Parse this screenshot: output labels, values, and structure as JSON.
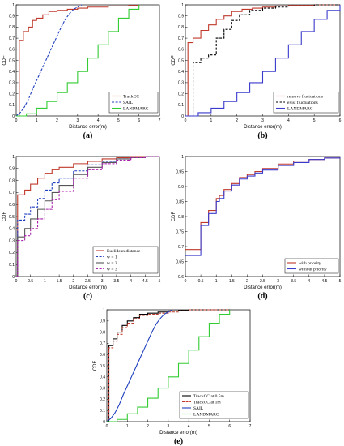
{
  "chart_data": [
    {
      "type": "line",
      "panel_label": "(a)",
      "xlabel": "Distance error(m)",
      "ylabel": "CDF",
      "xlim": [
        0,
        7
      ],
      "ylim": [
        0,
        1
      ],
      "xticks": [
        0,
        1,
        2,
        3,
        4,
        5,
        6,
        7
      ],
      "xtick_labels": [
        "0",
        "1",
        "2",
        "3",
        "4",
        "5",
        "6",
        "7"
      ],
      "yticks": [
        0,
        0.1,
        0.2,
        0.3,
        0.4,
        0.5,
        0.6,
        0.7,
        0.8,
        0.9,
        1
      ],
      "ytick_labels": [
        "0",
        "0.1",
        "0.2",
        "0.3",
        "0.4",
        "0.5",
        "0.6",
        "0.7",
        "0.8",
        "0.9",
        "1"
      ],
      "legend_position": "bottom-right",
      "series": [
        {
          "name": "TrackCC",
          "color": "#c0392b",
          "style": "solid",
          "step": true,
          "x": [
            0,
            0.15,
            0.35,
            0.6,
            0.8,
            1.0,
            1.3,
            1.6,
            2.0,
            2.5,
            3.0,
            3.5,
            4.5,
            5.5,
            6.0
          ],
          "y": [
            0,
            0.68,
            0.76,
            0.8,
            0.86,
            0.88,
            0.91,
            0.94,
            0.95,
            0.96,
            0.97,
            0.98,
            0.99,
            0.995,
            1.0
          ]
        },
        {
          "name": "SAIL",
          "color": "#1f3fbf",
          "style": "dashed",
          "step": false,
          "x": [
            0,
            0.2,
            0.4,
            0.6,
            0.8,
            1.0,
            1.2,
            1.4,
            1.6,
            1.8,
            2.0,
            2.2,
            2.4,
            2.6,
            2.8,
            3.0,
            3.2
          ],
          "y": [
            0,
            0.03,
            0.08,
            0.15,
            0.24,
            0.32,
            0.4,
            0.48,
            0.56,
            0.64,
            0.72,
            0.8,
            0.87,
            0.92,
            0.96,
            0.98,
            1.0
          ]
        },
        {
          "name": "LANDMARC",
          "color": "#33cc33",
          "style": "solid",
          "step": true,
          "x": [
            0,
            0.5,
            1.0,
            1.5,
            2.0,
            2.5,
            3.0,
            3.5,
            4.0,
            4.5,
            5.0,
            5.5,
            6.0
          ],
          "y": [
            0,
            0.02,
            0.07,
            0.13,
            0.21,
            0.3,
            0.4,
            0.52,
            0.64,
            0.76,
            0.88,
            0.96,
            1.0
          ]
        }
      ]
    },
    {
      "type": "line",
      "panel_label": "(b)",
      "xlabel": "Distance error(m)",
      "ylabel": "CDF",
      "xlim": [
        0,
        6
      ],
      "ylim": [
        0,
        1
      ],
      "xticks": [
        0,
        1,
        2,
        3,
        4,
        5,
        6
      ],
      "xtick_labels": [
        "0",
        "1",
        "2",
        "3",
        "4",
        "5",
        "6"
      ],
      "yticks": [
        0,
        0.1,
        0.2,
        0.3,
        0.4,
        0.5,
        0.6,
        0.7,
        0.8,
        0.9,
        1
      ],
      "ytick_labels": [
        "0",
        "0.1",
        "0.2",
        "0.3",
        "0.4",
        "0.5",
        "0.6",
        "0.7",
        "0.8",
        "0.9",
        "1"
      ],
      "legend_position": "bottom-right",
      "series": [
        {
          "name": "remove fluctuations",
          "color": "#c0392b",
          "style": "solid",
          "step": true,
          "x": [
            0,
            0.1,
            0.3,
            0.6,
            0.9,
            1.2,
            1.5,
            1.8,
            2.2,
            2.6,
            3.0,
            3.5,
            4.0,
            5.0,
            6.0
          ],
          "y": [
            0,
            0.66,
            0.7,
            0.77,
            0.82,
            0.87,
            0.9,
            0.94,
            0.96,
            0.97,
            0.98,
            0.99,
            0.995,
            1.0,
            1.0
          ]
        },
        {
          "name": "exist fluctuations",
          "color": "#000000",
          "style": "dashed",
          "step": true,
          "x": [
            0,
            0.3,
            0.6,
            0.9,
            1.2,
            1.5,
            1.8,
            2.1,
            2.5,
            3.0,
            3.5,
            4.0,
            5.0,
            6.0
          ],
          "y": [
            0,
            0.48,
            0.52,
            0.55,
            0.7,
            0.78,
            0.86,
            0.91,
            0.95,
            0.97,
            0.98,
            0.99,
            1.0,
            1.0
          ]
        },
        {
          "name": "LANDMARC",
          "color": "#3a3acc",
          "style": "solid",
          "step": true,
          "x": [
            0,
            0.5,
            1.0,
            1.5,
            2.0,
            2.5,
            3.0,
            3.5,
            4.0,
            4.5,
            5.0,
            5.5,
            6.0
          ],
          "y": [
            0,
            0.03,
            0.07,
            0.13,
            0.21,
            0.3,
            0.4,
            0.52,
            0.64,
            0.76,
            0.87,
            0.95,
            1.0
          ]
        }
      ]
    },
    {
      "type": "line",
      "panel_label": "(c)",
      "xlabel": "Distance error(m)",
      "ylabel": "CDF",
      "xlim": [
        0,
        5
      ],
      "ylim": [
        0,
        1
      ],
      "xticks": [
        0,
        0.5,
        1,
        1.5,
        2,
        2.5,
        3,
        3.5,
        4,
        4.5,
        5
      ],
      "xtick_labels": [
        "0",
        "0.5",
        "1",
        "1.5",
        "2",
        "2.5",
        "3",
        "3.5",
        "4",
        "4.5",
        "5"
      ],
      "yticks": [
        0,
        0.1,
        0.2,
        0.3,
        0.4,
        0.5,
        0.6,
        0.7,
        0.8,
        0.9,
        1
      ],
      "ytick_labels": [
        "0",
        "0.1",
        "0.2",
        "0.3",
        "0.4",
        "0.5",
        "0.6",
        "0.7",
        "0.8",
        "0.9",
        "1"
      ],
      "legend_position": "bottom-right",
      "series": [
        {
          "name": "Euclidean distance",
          "color": "#c0392b",
          "style": "solid",
          "step": true,
          "x": [
            0,
            0.05,
            0.3,
            0.5,
            0.75,
            1.0,
            1.25,
            1.5,
            2.0,
            2.5,
            3.0,
            3.5,
            4.0,
            4.5,
            5.0
          ],
          "y": [
            0,
            0.68,
            0.72,
            0.77,
            0.82,
            0.86,
            0.89,
            0.91,
            0.94,
            0.96,
            0.98,
            0.99,
            1.0,
            1.0,
            1.0
          ]
        },
        {
          "name": "w = 1",
          "color": "#1f3fbf",
          "style": "dashed",
          "step": true,
          "x": [
            0,
            0.05,
            0.3,
            0.5,
            0.75,
            1.0,
            1.25,
            1.5,
            2.0,
            2.5,
            3.0,
            3.5,
            4.0,
            4.5,
            5.0
          ],
          "y": [
            0,
            0.47,
            0.52,
            0.58,
            0.65,
            0.72,
            0.78,
            0.82,
            0.88,
            0.93,
            0.96,
            0.98,
            0.99,
            1.0,
            1.0
          ]
        },
        {
          "name": "w = 2",
          "color": "#555555",
          "style": "solid",
          "step": true,
          "x": [
            0,
            0.05,
            0.3,
            0.5,
            0.75,
            1.0,
            1.25,
            1.5,
            2.0,
            2.5,
            3.0,
            3.5,
            4.0,
            4.5,
            5.0
          ],
          "y": [
            0,
            0.33,
            0.4,
            0.48,
            0.56,
            0.63,
            0.7,
            0.76,
            0.85,
            0.91,
            0.95,
            0.98,
            0.99,
            1.0,
            1.0
          ]
        },
        {
          "name": "w = 3",
          "color": "#aa22aa",
          "style": "dashed",
          "step": true,
          "x": [
            0,
            0.05,
            0.3,
            0.5,
            0.75,
            1.0,
            1.25,
            1.5,
            2.0,
            2.5,
            3.0,
            3.5,
            4.0,
            4.5,
            5.0
          ],
          "y": [
            0,
            0.3,
            0.34,
            0.4,
            0.48,
            0.56,
            0.64,
            0.71,
            0.82,
            0.89,
            0.94,
            0.97,
            0.99,
            1.0,
            1.0
          ]
        }
      ]
    },
    {
      "type": "line",
      "panel_label": "(d)",
      "xlabel": "Distance error(m)",
      "ylabel": "CDF",
      "xlim": [
        0,
        5
      ],
      "ylim": [
        0.6,
        1
      ],
      "xticks": [
        0,
        0.5,
        1,
        1.5,
        2,
        2.5,
        3,
        3.5,
        4,
        4.5,
        5
      ],
      "xtick_labels": [
        "0",
        "0.5",
        "1",
        "1.5",
        "2",
        "2.5",
        "3",
        "3.5",
        "4",
        "4.5",
        "5"
      ],
      "yticks": [
        0.6,
        0.65,
        0.7,
        0.75,
        0.8,
        0.85,
        0.9,
        0.95,
        1
      ],
      "ytick_labels": [
        "0.6",
        "0.65",
        "0.7",
        "0.75",
        "0.8",
        "0.85",
        "0.9",
        "0.95",
        "1"
      ],
      "legend_position": "bottom-right",
      "series": [
        {
          "name": "with priority",
          "color": "#c0392b",
          "style": "solid",
          "step": true,
          "x": [
            0,
            0.5,
            0.75,
            1.0,
            1.1,
            1.25,
            1.5,
            1.75,
            2.0,
            2.25,
            2.5,
            3.0,
            3.5,
            4.0,
            4.5,
            5.0
          ],
          "y": [
            0.69,
            0.78,
            0.82,
            0.86,
            0.87,
            0.89,
            0.91,
            0.93,
            0.94,
            0.95,
            0.96,
            0.975,
            0.985,
            0.99,
            0.995,
            1.0
          ]
        },
        {
          "name": "without priority",
          "color": "#3a3acc",
          "style": "solid",
          "step": true,
          "x": [
            0,
            0.5,
            0.75,
            1.0,
            1.1,
            1.25,
            1.5,
            1.75,
            2.0,
            2.25,
            2.5,
            3.0,
            3.5,
            4.0,
            4.5,
            5.0
          ],
          "y": [
            0.67,
            0.77,
            0.81,
            0.85,
            0.86,
            0.885,
            0.905,
            0.925,
            0.935,
            0.945,
            0.955,
            0.97,
            0.98,
            0.99,
            0.995,
            1.0
          ]
        }
      ]
    },
    {
      "type": "line",
      "panel_label": "(e)",
      "xlabel": "Distance error(m)",
      "ylabel": "CDF",
      "xlim": [
        0,
        7
      ],
      "ylim": [
        0,
        1
      ],
      "xticks": [
        0,
        1,
        2,
        3,
        4,
        5,
        6,
        7
      ],
      "xtick_labels": [
        "0",
        "1",
        "2",
        "3",
        "4",
        "5",
        "6",
        "7"
      ],
      "yticks": [
        0,
        0.1,
        0.2,
        0.3,
        0.4,
        0.5,
        0.6,
        0.7,
        0.8,
        0.9,
        1
      ],
      "ytick_labels": [
        "0",
        "0.1",
        "0.2",
        "0.3",
        "0.4",
        "0.5",
        "0.6",
        "0.7",
        "0.8",
        "0.9",
        "1"
      ],
      "legend_position": "bottom-right",
      "series": [
        {
          "name": "TrackCC at 0.5m",
          "color": "#000000",
          "style": "solid",
          "step": true,
          "x": [
            0,
            0.1,
            0.3,
            0.5,
            0.75,
            1.0,
            1.3,
            1.6,
            2.0,
            2.5,
            3.0,
            3.5,
            4.0,
            5.0,
            6.0
          ],
          "y": [
            0,
            0.68,
            0.74,
            0.8,
            0.86,
            0.9,
            0.93,
            0.96,
            0.97,
            0.98,
            0.99,
            0.995,
            1.0,
            1.0,
            1.0
          ]
        },
        {
          "name": "TrackCC at 1m",
          "color": "#c0392b",
          "style": "dashed",
          "step": true,
          "x": [
            0,
            0.1,
            0.3,
            0.5,
            0.75,
            1.0,
            1.3,
            1.6,
            2.0,
            2.5,
            3.0,
            3.5,
            4.0,
            5.0,
            6.0
          ],
          "y": [
            0,
            0.66,
            0.72,
            0.78,
            0.84,
            0.88,
            0.92,
            0.95,
            0.96,
            0.97,
            0.98,
            0.99,
            1.0,
            1.0,
            1.0
          ]
        },
        {
          "name": "SAIL",
          "color": "#1f3fbf",
          "style": "solid",
          "step": false,
          "x": [
            0,
            0.2,
            0.4,
            0.6,
            0.8,
            1.0,
            1.2,
            1.4,
            1.6,
            1.8,
            2.0,
            2.2,
            2.4,
            2.6,
            2.8,
            3.0,
            3.2
          ],
          "y": [
            0,
            0.03,
            0.08,
            0.15,
            0.24,
            0.32,
            0.4,
            0.48,
            0.56,
            0.64,
            0.72,
            0.8,
            0.87,
            0.92,
            0.96,
            0.98,
            1.0
          ]
        },
        {
          "name": "LANDMARC",
          "color": "#33cc33",
          "style": "solid",
          "step": true,
          "x": [
            0,
            0.5,
            1.0,
            1.5,
            2.0,
            2.5,
            3.0,
            3.5,
            4.0,
            4.5,
            5.0,
            5.5,
            6.0
          ],
          "y": [
            0,
            0.02,
            0.07,
            0.13,
            0.21,
            0.3,
            0.4,
            0.52,
            0.64,
            0.76,
            0.88,
            0.96,
            1.0
          ]
        }
      ]
    }
  ]
}
